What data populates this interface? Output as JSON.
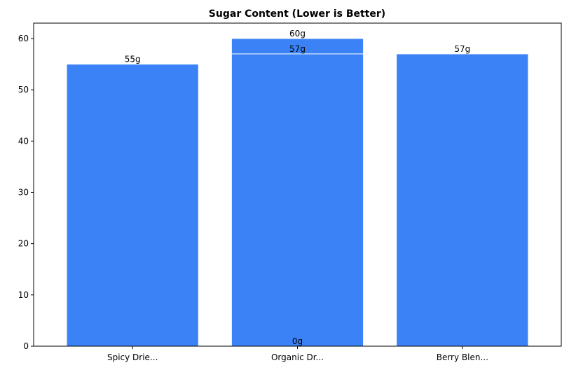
{
  "chart_data": {
    "type": "bar",
    "title": "Sugar Content (Lower is Better)",
    "xlabel": "",
    "ylabel": "",
    "categories": [
      "Spicy Drie...",
      "Organic Dr...",
      "Berry Blen..."
    ],
    "bars": [
      {
        "category": "Spicy Drie...",
        "value": 55,
        "label": "55g"
      },
      {
        "category": "Organic Dr...",
        "value": 60,
        "label": "60g"
      },
      {
        "category": "Organic Dr...",
        "value": 57,
        "label": "57g"
      },
      {
        "category": "Organic Dr...",
        "value": 0,
        "label": "0g"
      },
      {
        "category": "Berry Blen...",
        "value": 57,
        "label": "57g"
      }
    ],
    "ylim": [
      0,
      63
    ],
    "yticks": [
      0,
      10,
      20,
      30,
      40,
      50,
      60
    ],
    "grid": false,
    "bar_color": "#3b82f6",
    "bar_edge_color": "#ffffff"
  }
}
